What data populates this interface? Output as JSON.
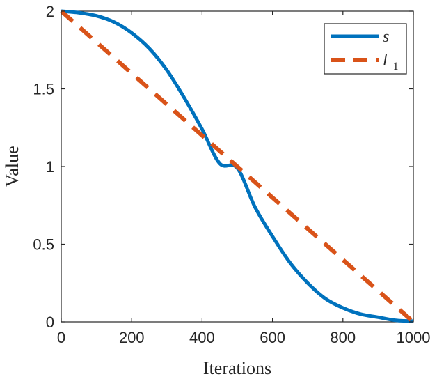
{
  "chart_data": {
    "type": "line",
    "title": "",
    "xlabel": "Iterations",
    "ylabel": "Value",
    "xlim": [
      0,
      1000
    ],
    "ylim": [
      0,
      2
    ],
    "xticks": [
      0,
      200,
      400,
      600,
      800,
      1000
    ],
    "yticks": [
      0,
      0.5,
      1,
      1.5,
      2
    ],
    "xtick_labels": [
      "0",
      "200",
      "400",
      "600",
      "800",
      "1000"
    ],
    "ytick_labels": [
      "0",
      "0.5",
      "1",
      "1.5",
      "2"
    ],
    "grid": false,
    "legend_position": "top-right",
    "series": [
      {
        "name": "s",
        "style": "solid",
        "color": "#0072BD",
        "x": [
          0,
          50,
          100,
          150,
          200,
          250,
          300,
          350,
          400,
          450,
          500,
          550,
          600,
          650,
          700,
          750,
          800,
          850,
          900,
          950,
          1000
        ],
        "values": [
          2.0,
          1.99,
          1.97,
          1.93,
          1.86,
          1.76,
          1.62,
          1.44,
          1.24,
          1.02,
          0.99,
          0.74,
          0.55,
          0.38,
          0.25,
          0.15,
          0.09,
          0.05,
          0.03,
          0.01,
          0.005
        ]
      },
      {
        "name": "l",
        "subscript": "1",
        "style": "dashed",
        "color": "#D95319",
        "x": [
          0,
          1000
        ],
        "values": [
          2.0,
          0.0
        ]
      }
    ]
  }
}
